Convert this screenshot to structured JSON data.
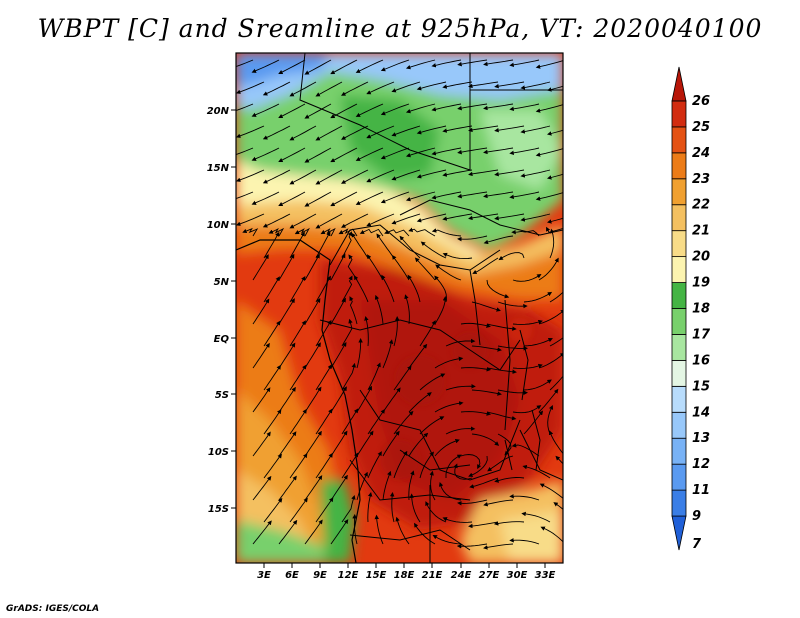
{
  "title": "WBPT [C] and Sreamline at 925hPa, VT: 2020040100",
  "credit": "GrADS: IGES/COLA",
  "lat_labels": [
    "20N",
    "15N",
    "10N",
    "5N",
    "EQ",
    "5S",
    "10S",
    "15S"
  ],
  "lon_labels": [
    "3E",
    "6E",
    "9E",
    "12E",
    "15E",
    "18E",
    "21E",
    "24E",
    "27E",
    "30E",
    "33E"
  ],
  "colorbar": {
    "labels": [
      "7",
      "9",
      "11",
      "12",
      "13",
      "14",
      "15",
      "16",
      "17",
      "18",
      "19",
      "20",
      "21",
      "22",
      "23",
      "24",
      "25",
      "26"
    ],
    "colors": [
      "#2060d8",
      "#3a7ee6",
      "#5a9af0",
      "#78b2f6",
      "#98c8fa",
      "#b8dcfc",
      "#e4f6e4",
      "#a8e6a0",
      "#78d06c",
      "#44b444",
      "#fcf4b0",
      "#f8dc88",
      "#f4c060",
      "#f0a030",
      "#ec7c18",
      "#e45214",
      "#d22c10",
      "#b81608"
    ]
  }
}
